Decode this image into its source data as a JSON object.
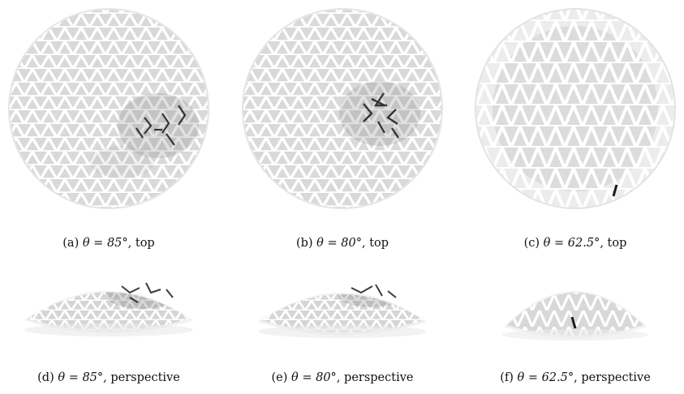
{
  "colors": {
    "background": "#ffffff",
    "strut": "#ffffff",
    "strut_edge": "#c4c4c4",
    "panel_shade": "#e6e6e6",
    "stress": "#1a1a1a"
  },
  "panels": [
    {
      "id": "a",
      "prefix": "(a)",
      "theta": "θ = 85°",
      "suffix": ", top",
      "view": "top"
    },
    {
      "id": "b",
      "prefix": "(b)",
      "theta": "θ = 80°",
      "suffix": ", top",
      "view": "top"
    },
    {
      "id": "c",
      "prefix": "(c)",
      "theta": "θ = 62.5°",
      "suffix": ", top",
      "view": "top"
    },
    {
      "id": "d",
      "prefix": "(d)",
      "theta": "θ = 85°",
      "suffix": ", perspective",
      "view": "perspective"
    },
    {
      "id": "e",
      "prefix": "(e)",
      "theta": "θ = 80°",
      "suffix": ", perspective",
      "view": "perspective"
    },
    {
      "id": "f",
      "prefix": "(f)",
      "theta": "θ = 62.5°",
      "suffix": ", perspective",
      "view": "perspective"
    }
  ]
}
